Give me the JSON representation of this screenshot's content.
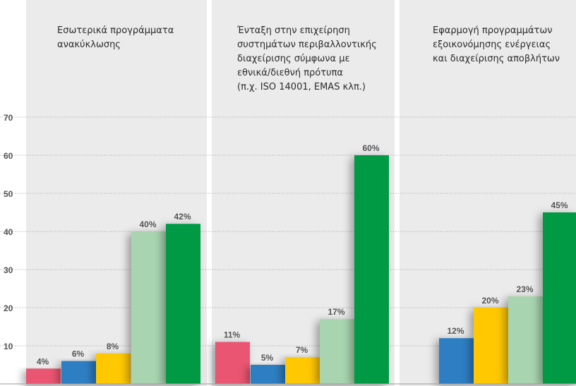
{
  "chart_data": [
    {
      "type": "bar",
      "title": "Εσωτερικά προγράμματα\nανακύκλωσης",
      "values": [
        4,
        6,
        8,
        40,
        42
      ],
      "labels": [
        "4%",
        "6%",
        "8%",
        "40%",
        "42%"
      ]
    },
    {
      "type": "bar",
      "title": "Ένταξη στην επιχείρηση\nσυστημάτων περιβαλλοντικής\nδιαχείρισης σύμφωνα με\nεθνικά/διεθνή πρότυπα\n(π.χ. ISO 14001, EMAS κλπ.)",
      "values": [
        11,
        5,
        7,
        17,
        60
      ],
      "labels": [
        "11%",
        "5%",
        "7%",
        "17%",
        "60%"
      ]
    },
    {
      "type": "bar",
      "title": "Εφαρμογή προγραμμάτων\nεξοικονόμησης ενέργειας\nκαι διαχείρισης αποβλήτων",
      "values": [
        null,
        12,
        20,
        23,
        45
      ],
      "labels": [
        "",
        "12%",
        "20%",
        "23%",
        "45%"
      ]
    }
  ],
  "y_axis": {
    "ticks": [
      "10",
      "20",
      "30",
      "40",
      "50",
      "60",
      "70"
    ],
    "ylim": [
      0,
      70
    ],
    "grid": true
  },
  "colors": {
    "series": [
      "#ea5471",
      "#2e7ec3",
      "#ffc800",
      "#a8d5b0",
      "#009a44"
    ],
    "panel_background": "#ebebeb",
    "grid": "#b4b4b4",
    "label": "#555555"
  }
}
